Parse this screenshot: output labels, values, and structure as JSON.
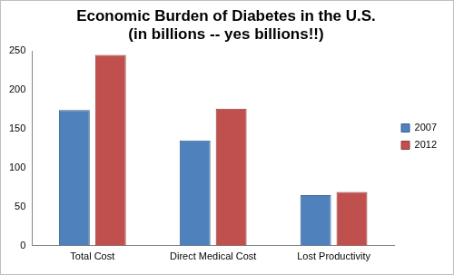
{
  "chart_data": {
    "type": "bar",
    "title": [
      "Economic Burden of Diabetes in the U.S.",
      "(in billions -- yes billions!!)"
    ],
    "categories": [
      "Total Cost",
      "Direct Medical Cost",
      "Lost Productivity"
    ],
    "series": [
      {
        "name": "2007",
        "color": "#4f81bd",
        "values": [
          174,
          135,
          65
        ]
      },
      {
        "name": "2012",
        "color": "#c0504d",
        "values": [
          245,
          176,
          69
        ]
      }
    ],
    "ylim": [
      0,
      250
    ],
    "yticks": [
      0,
      50,
      100,
      150,
      200,
      250
    ],
    "grid": false,
    "legend": "right"
  }
}
